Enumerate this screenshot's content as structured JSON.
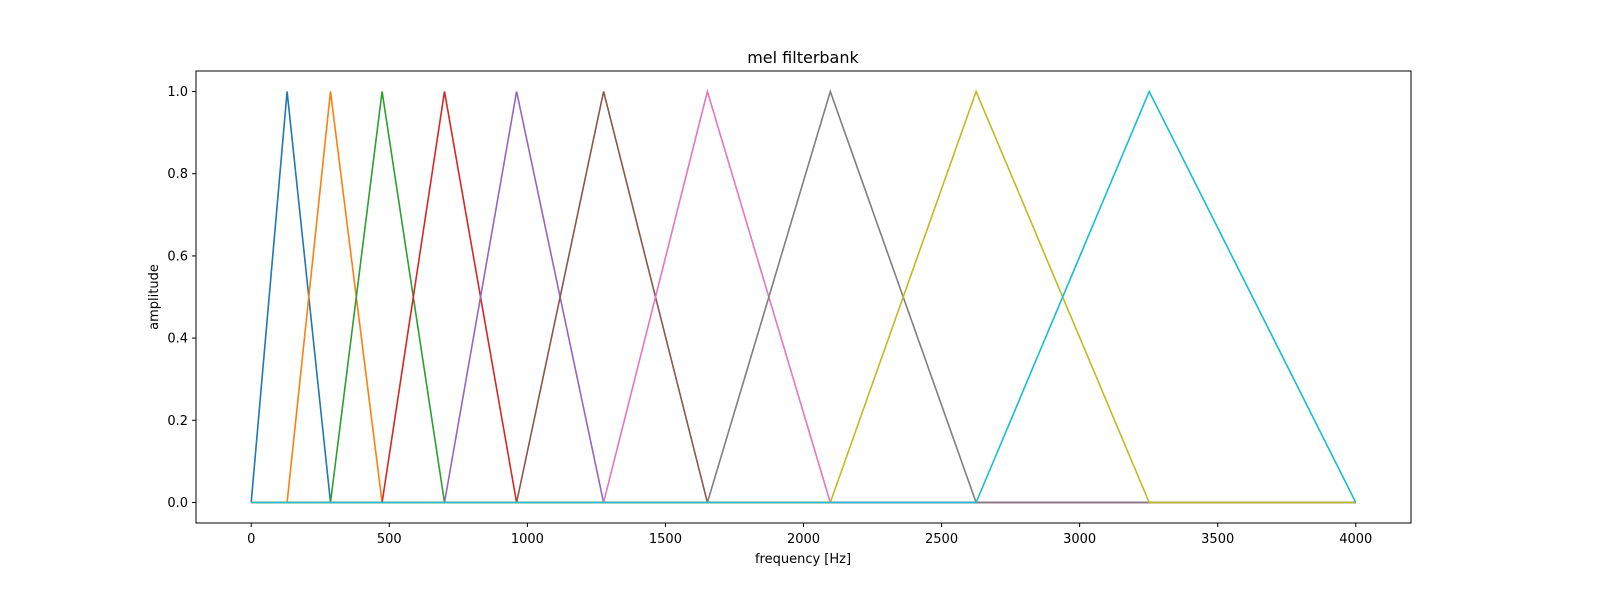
{
  "chart_data": {
    "type": "line",
    "title": "mel filterbank",
    "xlabel": "frequency [Hz]",
    "ylabel": "amplitude",
    "xlim": [
      -200,
      4200
    ],
    "ylim": [
      -0.05,
      1.05
    ],
    "x_ticks": [
      0,
      500,
      1000,
      1500,
      2000,
      2500,
      3000,
      3500,
      4000
    ],
    "y_ticks": [
      0.0,
      0.2,
      0.4,
      0.6,
      0.8,
      1.0
    ],
    "x_tick_labels": [
      "0",
      "500",
      "1000",
      "1500",
      "2000",
      "2500",
      "3000",
      "3500",
      "4000"
    ],
    "y_tick_labels": [
      "0.0",
      "0.2",
      "0.4",
      "0.6",
      "0.8",
      "1.0"
    ],
    "grid": false,
    "legend": false,
    "colors": [
      "#1f77b4",
      "#ff7f0e",
      "#2ca02c",
      "#d62728",
      "#9467bd",
      "#8c564b",
      "#e377c2",
      "#7f7f7f",
      "#bcbd22",
      "#17becf"
    ],
    "series": [
      {
        "x": [
          0,
          130,
          287,
          4000
        ],
        "y": [
          0,
          1,
          0,
          0
        ]
      },
      {
        "x": [
          0,
          130,
          287,
          474,
          4000
        ],
        "y": [
          0,
          0,
          1,
          0,
          0
        ]
      },
      {
        "x": [
          0,
          287,
          474,
          700,
          4000
        ],
        "y": [
          0,
          0,
          1,
          0,
          0
        ]
      },
      {
        "x": [
          0,
          474,
          700,
          961,
          4000
        ],
        "y": [
          0,
          0,
          1,
          0,
          0
        ]
      },
      {
        "x": [
          0,
          700,
          961,
          1276,
          4000
        ],
        "y": [
          0,
          0,
          1,
          0,
          0
        ]
      },
      {
        "x": [
          0,
          961,
          1276,
          1652,
          4000
        ],
        "y": [
          0,
          0,
          1,
          0,
          0
        ]
      },
      {
        "x": [
          0,
          1276,
          1652,
          2097,
          4000
        ],
        "y": [
          0,
          0,
          1,
          0,
          0
        ]
      },
      {
        "x": [
          0,
          1652,
          2097,
          2625,
          4000
        ],
        "y": [
          0,
          0,
          1,
          0,
          0
        ]
      },
      {
        "x": [
          0,
          2097,
          2625,
          3252,
          4000
        ],
        "y": [
          0,
          0,
          1,
          0,
          0
        ]
      },
      {
        "x": [
          0,
          2625,
          3252,
          4000
        ],
        "y": [
          0,
          0,
          1,
          0
        ]
      }
    ]
  }
}
